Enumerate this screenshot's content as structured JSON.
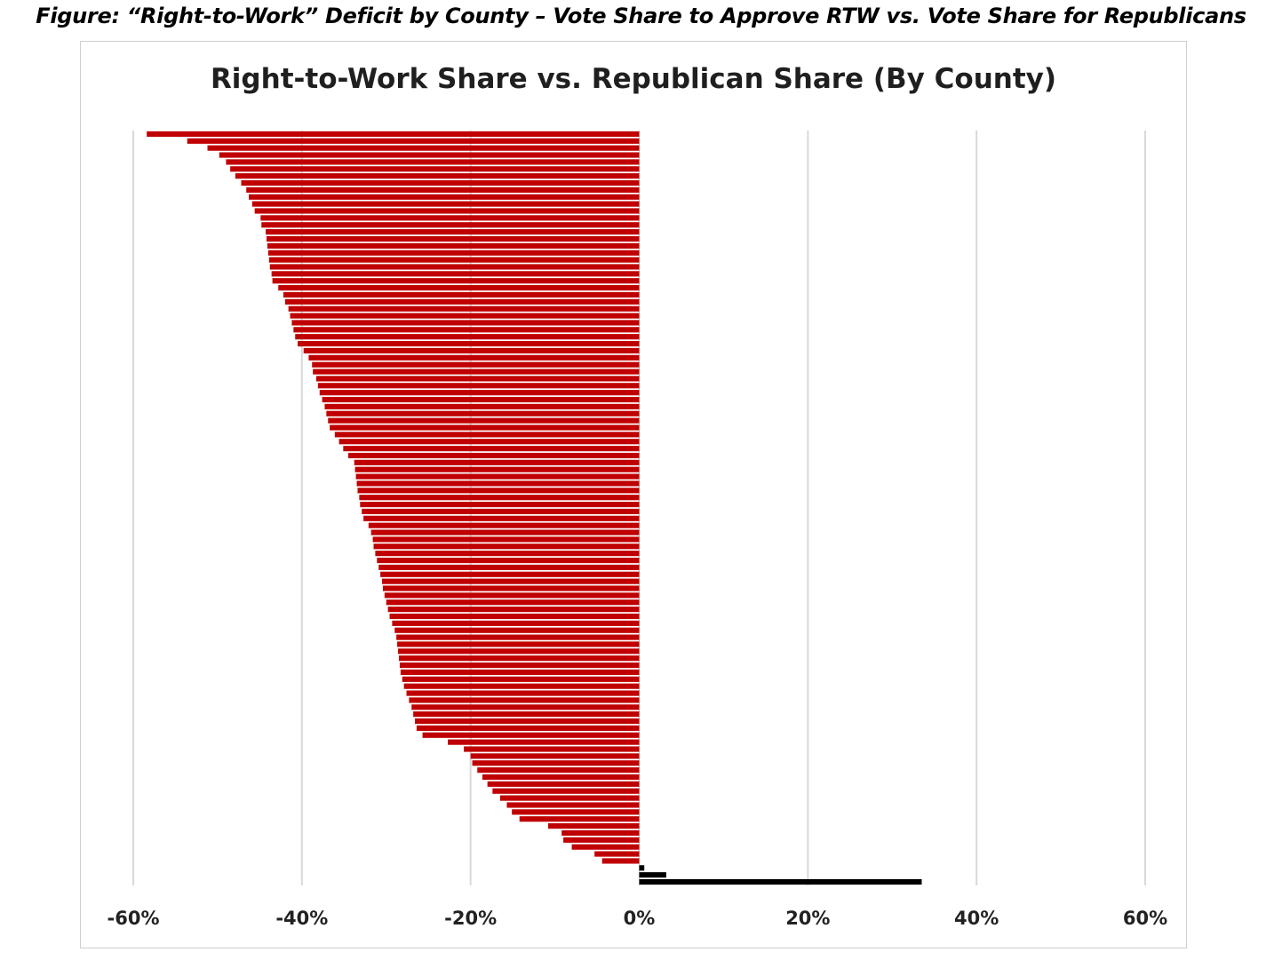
{
  "figure": {
    "caption": "Figure: “Right-to-Work” Deficit by County – Vote Share to Approve RTW vs. Vote Share for Republicans"
  },
  "chart_data": {
    "type": "bar",
    "orientation": "horizontal",
    "title": "Right-to-Work Share vs. Republican Share (By County)",
    "xlabel": "",
    "ylabel": "",
    "xlim": [
      -0.6,
      0.6
    ],
    "x_ticks": [
      -0.6,
      -0.4,
      -0.2,
      0,
      0.2,
      0.4,
      0.6
    ],
    "x_tick_labels": [
      "-60%",
      "-40%",
      "-20%",
      "0%",
      "20%",
      "40%",
      "60%"
    ],
    "grid": "vertical",
    "legend": "none",
    "colors": {
      "negative": "#c00000",
      "positive": "#000000",
      "grid": "#d9d9d9"
    },
    "values": [
      -0.584,
      -0.536,
      -0.512,
      -0.498,
      -0.49,
      -0.485,
      -0.479,
      -0.472,
      -0.466,
      -0.463,
      -0.459,
      -0.456,
      -0.449,
      -0.448,
      -0.443,
      -0.442,
      -0.441,
      -0.44,
      -0.439,
      -0.438,
      -0.436,
      -0.435,
      -0.428,
      -0.422,
      -0.42,
      -0.416,
      -0.414,
      -0.412,
      -0.41,
      -0.408,
      -0.405,
      -0.398,
      -0.392,
      -0.388,
      -0.387,
      -0.383,
      -0.381,
      -0.379,
      -0.376,
      -0.373,
      -0.371,
      -0.369,
      -0.367,
      -0.361,
      -0.356,
      -0.351,
      -0.345,
      -0.338,
      -0.337,
      -0.336,
      -0.335,
      -0.334,
      -0.332,
      -0.331,
      -0.329,
      -0.327,
      -0.321,
      -0.318,
      -0.316,
      -0.315,
      -0.313,
      -0.311,
      -0.309,
      -0.307,
      -0.305,
      -0.304,
      -0.302,
      -0.3,
      -0.298,
      -0.296,
      -0.293,
      -0.29,
      -0.288,
      -0.287,
      -0.286,
      -0.285,
      -0.284,
      -0.283,
      -0.281,
      -0.279,
      -0.276,
      -0.273,
      -0.27,
      -0.268,
      -0.266,
      -0.264,
      -0.257,
      -0.227,
      -0.208,
      -0.2,
      -0.198,
      -0.192,
      -0.186,
      -0.18,
      -0.174,
      -0.165,
      -0.157,
      -0.151,
      -0.142,
      -0.108,
      -0.092,
      -0.09,
      -0.08,
      -0.053,
      -0.044,
      0.006,
      0.032,
      0.335
    ]
  }
}
